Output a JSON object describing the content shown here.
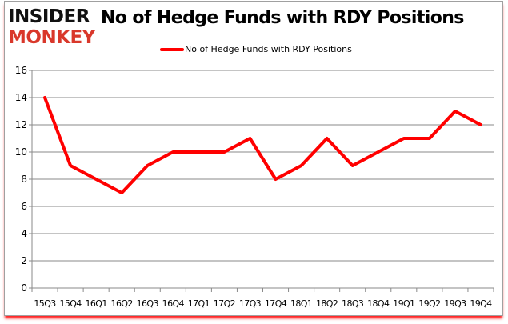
{
  "logo": {
    "line1": "INSIDER",
    "line2": "MONKEY"
  },
  "chart_data": {
    "type": "line",
    "title": "No of Hedge Funds with RDY Positions",
    "categories": [
      "15Q3",
      "15Q4",
      "16Q1",
      "16Q2",
      "16Q3",
      "16Q4",
      "17Q1",
      "17Q2",
      "17Q3",
      "17Q4",
      "18Q1",
      "18Q2",
      "18Q3",
      "18Q4",
      "19Q1",
      "19Q2",
      "19Q3",
      "19Q4"
    ],
    "series": [
      {
        "name": "No of Hedge Funds with RDY Positions",
        "values": [
          14,
          9,
          8,
          7,
          9,
          10,
          10,
          10,
          11,
          8,
          9,
          11,
          9,
          10,
          11,
          11,
          13,
          12
        ],
        "color": "#ff0000"
      }
    ],
    "ylim": [
      0,
      16
    ],
    "yticks": [
      0,
      2,
      4,
      6,
      8,
      10,
      12,
      14,
      16
    ],
    "grid": true,
    "legend": "top-center"
  }
}
